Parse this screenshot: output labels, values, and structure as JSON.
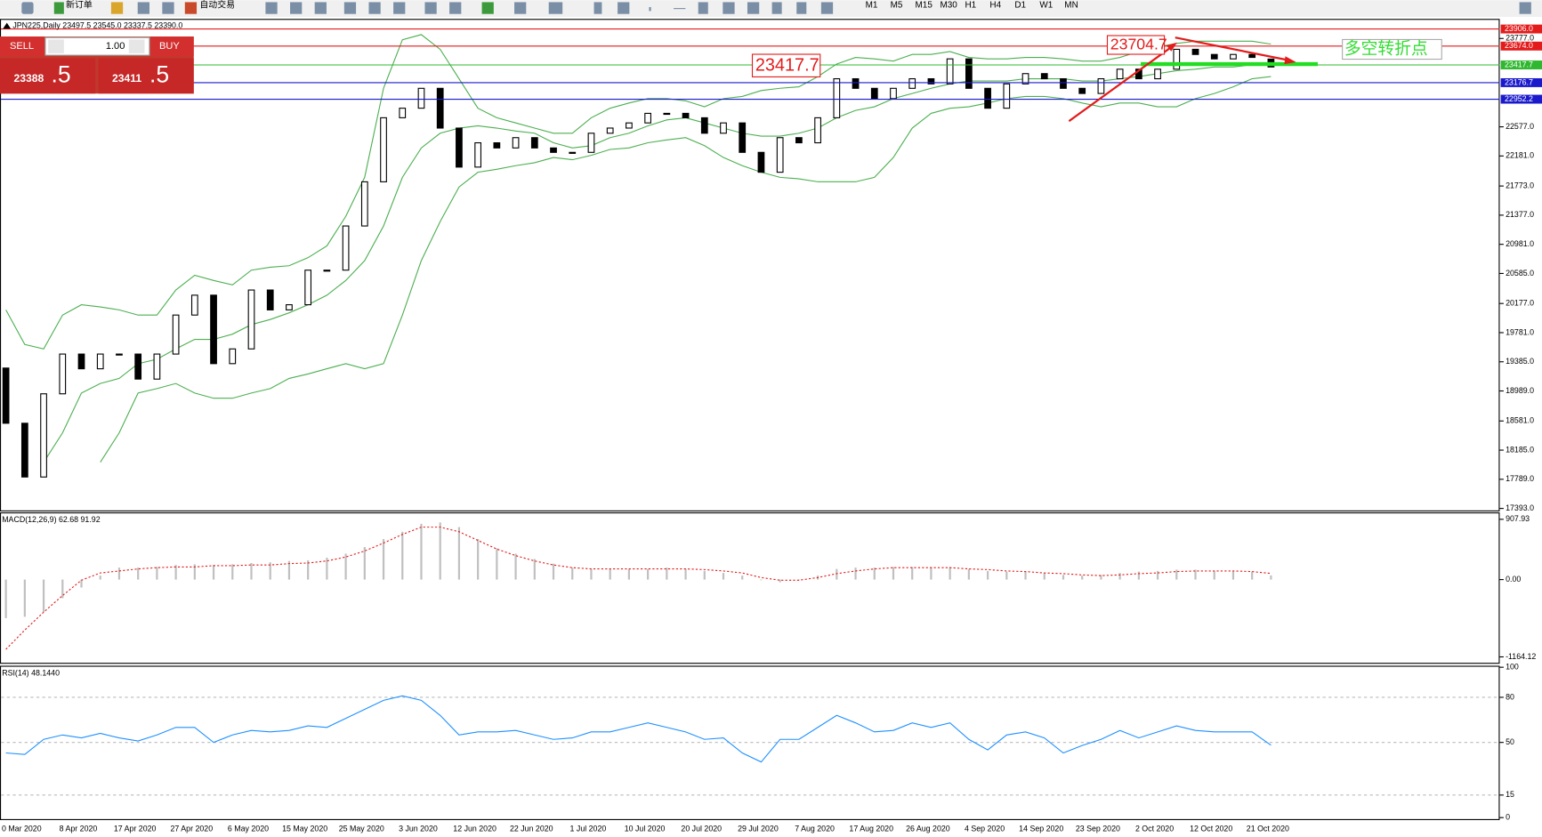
{
  "toolbar": {
    "new_order": "新订单",
    "auto_trading": "自动交易",
    "timeframes": [
      "M1",
      "M5",
      "M15",
      "M30",
      "H1",
      "H4",
      "D1",
      "W1",
      "MN"
    ]
  },
  "trade_panel": {
    "sell": "SELL",
    "lot": "1.00",
    "buy": "BUY",
    "bid_main": "23388",
    "bid_frac": ".5",
    "ask_main": "23411",
    "ask_frac": ".5"
  },
  "chart_data": [
    {
      "type": "candlestick",
      "title": "JPN225,Daily  23497.5 23545.0 23337.5 23390.0",
      "categories": [
        "0 Mar 2020",
        null,
        null,
        "8 Apr 2020",
        null,
        null,
        "17 Apr 2020",
        null,
        null,
        "27 Apr 2020",
        null,
        null,
        "6 May 2020",
        null,
        null,
        "15 May 2020",
        null,
        null,
        "25 May 2020",
        null,
        null,
        "3 Jun 2020",
        null,
        null,
        "12 Jun 2020",
        null,
        null,
        "22 Jun 2020",
        null,
        null,
        "1 Jul 2020",
        null,
        null,
        "10 Jul 2020",
        null,
        null,
        "20 Jul 2020",
        null,
        null,
        "29 Jul 2020",
        null,
        null,
        "7 Aug 2020",
        null,
        null,
        "17 Aug 2020",
        null,
        null,
        "26 Aug 2020",
        null,
        null,
        "4 Sep 2020",
        null,
        null,
        "14 Sep 2020",
        null,
        null,
        "23 Sep 2020",
        null,
        null,
        "2 Oct 2020",
        null,
        null,
        "12 Oct 2020",
        null,
        null,
        "21 Oct 2020",
        null
      ],
      "open": [
        19300,
        18550,
        17820,
        18950,
        19490,
        19290,
        19490,
        19490,
        19150,
        19490,
        20020,
        20290,
        19360,
        19560,
        20360,
        20090,
        20160,
        20630,
        20630,
        21230,
        21830,
        22700,
        22830,
        23100,
        22560,
        22030,
        22360,
        22290,
        22430,
        22290,
        22230,
        22230,
        22490,
        22560,
        22630,
        22760,
        22760,
        22700,
        22490,
        22630,
        22230,
        21960,
        22430,
        22360,
        22700,
        23230,
        23100,
        22960,
        23100,
        23230,
        23160,
        23500,
        23100,
        22830,
        23160,
        23300,
        23230,
        23100,
        23030,
        23230,
        23360,
        23230,
        23360,
        23630,
        23560,
        23500,
        23560,
        23497.5
      ],
      "close": [
        18550,
        17820,
        18950,
        19490,
        19290,
        19490,
        19490,
        19150,
        19490,
        20020,
        20290,
        19360,
        19560,
        20360,
        20090,
        20160,
        20630,
        20630,
        21230,
        21830,
        22700,
        22830,
        23100,
        22560,
        22030,
        22360,
        22290,
        22430,
        22290,
        22230,
        22230,
        22490,
        22560,
        22630,
        22760,
        22760,
        22700,
        22490,
        22630,
        22230,
        21960,
        22430,
        22360,
        22700,
        23230,
        23100,
        22960,
        23100,
        23230,
        23160,
        23500,
        23100,
        22830,
        23160,
        23300,
        23230,
        23100,
        23030,
        23230,
        23360,
        23230,
        23360,
        23630,
        23560,
        23500,
        23560,
        23520,
        23390
      ],
      "upper_band": [
        20090,
        19620,
        19560,
        20020,
        20160,
        20130,
        20090,
        20020,
        20020,
        20360,
        20560,
        20490,
        20430,
        20630,
        20670,
        20690,
        20800,
        20960,
        21360,
        21890,
        23100,
        23760,
        23830,
        23630,
        23230,
        22830,
        22700,
        22630,
        22560,
        22490,
        22490,
        22700,
        22830,
        22900,
        22960,
        22960,
        22930,
        22850,
        22960,
        22990,
        23070,
        23100,
        23120,
        23260,
        23430,
        23520,
        23500,
        23470,
        23560,
        23560,
        23600,
        23520,
        23500,
        23500,
        23520,
        23520,
        23500,
        23470,
        23470,
        23520,
        23600,
        23660,
        23710,
        23740,
        23740,
        23740,
        23740,
        23700
      ],
      "middle_band": [
        null,
        null,
        18020,
        18420,
        18960,
        19090,
        19160,
        19360,
        19420,
        19560,
        19690,
        19690,
        19760,
        19890,
        19960,
        20050,
        20160,
        20290,
        20490,
        20760,
        21230,
        21890,
        22290,
        22490,
        22560,
        22590,
        22560,
        22520,
        22490,
        22360,
        22290,
        22320,
        22430,
        22490,
        22590,
        22670,
        22700,
        22630,
        22560,
        22490,
        22450,
        22450,
        22490,
        22560,
        22700,
        22800,
        22850,
        22960,
        23030,
        23100,
        23160,
        23200,
        23200,
        23200,
        23230,
        23230,
        23230,
        23200,
        23200,
        23230,
        23260,
        23300,
        23340,
        23360,
        23390,
        23390,
        23420,
        23440
      ],
      "lower_band": [
        null,
        null,
        null,
        null,
        null,
        18020,
        18420,
        18960,
        19020,
        19090,
        18960,
        18890,
        18890,
        18960,
        19020,
        19160,
        19220,
        19290,
        19360,
        19290,
        19360,
        20020,
        20760,
        21290,
        21760,
        21960,
        22000,
        22050,
        22090,
        22160,
        22130,
        22190,
        22270,
        22290,
        22360,
        22400,
        22430,
        22320,
        22160,
        22050,
        21960,
        21890,
        21870,
        21830,
        21830,
        21830,
        21890,
        22160,
        22560,
        22760,
        22830,
        22850,
        22900,
        22960,
        22990,
        22990,
        22960,
        22900,
        22850,
        22900,
        22900,
        22850,
        22850,
        22960,
        23030,
        23120,
        23230,
        23260
      ],
      "band_color": "#4caf50",
      "ylim": [
        17366,
        24030
      ],
      "yticks": [
        {
          "value": 17393,
          "label": "17393.0"
        },
        {
          "value": 17789,
          "label": "17789.0"
        },
        {
          "value": 18185,
          "label": "18185.0"
        },
        {
          "value": 18581,
          "label": "18581.0"
        },
        {
          "value": 18989,
          "label": "18989.0"
        },
        {
          "value": 19385,
          "label": "19385.0"
        },
        {
          "value": 19781,
          "label": "19781.0"
        },
        {
          "value": 20177,
          "label": "20177.0"
        },
        {
          "value": 20585,
          "label": "20585.0"
        },
        {
          "value": 20981,
          "label": "20981.0"
        },
        {
          "value": 21377,
          "label": "21377.0"
        },
        {
          "value": 21773,
          "label": "21773.0"
        },
        {
          "value": 22181,
          "label": "22181.0"
        },
        {
          "value": 22577,
          "label": "22577.0"
        },
        {
          "value": 23777,
          "label": "23777.0"
        }
      ],
      "price_lines": [
        {
          "value": 23906,
          "label": "23906.0",
          "color": "#e31b1b"
        },
        {
          "value": 23674,
          "label": "23674.0",
          "color": "#e31b1b"
        },
        {
          "value": 23417.7,
          "label": "23417.7",
          "color": "#2fb82f"
        },
        {
          "value": 23176.7,
          "label": "23176.7",
          "color": "#1a1acc"
        },
        {
          "value": 22952.2,
          "label": "22952.2",
          "color": "#1a1acc"
        }
      ],
      "annotations": [
        "23704.7",
        "23417.7",
        "多空转折点"
      ]
    },
    {
      "type": "macd",
      "title": "MACD(12,26,9) 62.68 91.92",
      "histogram": [
        -580,
        -560,
        -490,
        -280,
        -120,
        60,
        180,
        180,
        190,
        220,
        230,
        220,
        230,
        250,
        260,
        280,
        290,
        330,
        390,
        490,
        610,
        720,
        840,
        860,
        790,
        610,
        470,
        390,
        310,
        240,
        180,
        160,
        160,
        160,
        160,
        180,
        160,
        130,
        100,
        60,
        -10,
        -40,
        -10,
        60,
        160,
        180,
        180,
        190,
        190,
        190,
        190,
        160,
        130,
        120,
        120,
        100,
        70,
        60,
        70,
        100,
        120,
        130,
        150,
        150,
        130,
        130,
        120,
        62.68
      ],
      "signal": [
        -1050,
        -760,
        -490,
        -240,
        -10,
        100,
        130,
        160,
        180,
        190,
        190,
        210,
        210,
        220,
        220,
        240,
        250,
        280,
        340,
        430,
        550,
        680,
        790,
        790,
        720,
        590,
        460,
        360,
        280,
        220,
        180,
        160,
        160,
        160,
        160,
        160,
        160,
        150,
        130,
        100,
        30,
        -10,
        -10,
        30,
        90,
        130,
        160,
        180,
        180,
        180,
        180,
        160,
        150,
        130,
        120,
        100,
        90,
        70,
        60,
        70,
        90,
        100,
        120,
        130,
        130,
        130,
        120,
        91.92
      ],
      "histogram_color": "#c0c0c0",
      "signal_color": "#e31b1b",
      "ylim": [
        -1268,
        1012
      ],
      "yticks": [
        907.93,
        {
          "value": 0,
          "label": "0.00"
        },
        -1164.12
      ]
    },
    {
      "type": "line",
      "title": "RSI(14) 48.1440",
      "values": [
        43,
        42,
        52,
        55,
        53,
        56,
        53,
        51,
        55,
        60,
        60,
        50,
        55,
        58,
        57,
        58,
        61,
        60,
        66,
        72,
        78,
        81,
        78,
        68,
        55,
        57,
        57,
        58,
        55,
        52,
        53,
        57,
        57,
        60,
        63,
        60,
        57,
        52,
        53,
        43,
        37,
        52,
        52,
        60,
        68,
        63,
        57,
        58,
        63,
        60,
        63,
        52,
        45,
        55,
        57,
        53,
        43,
        48,
        52,
        58,
        53,
        57,
        61,
        58,
        57,
        57,
        57,
        48.144
      ],
      "color": "#1e90ff",
      "ylim": [
        -1,
        101
      ],
      "yticks": [
        0,
        15,
        50,
        80,
        100
      ]
    }
  ]
}
